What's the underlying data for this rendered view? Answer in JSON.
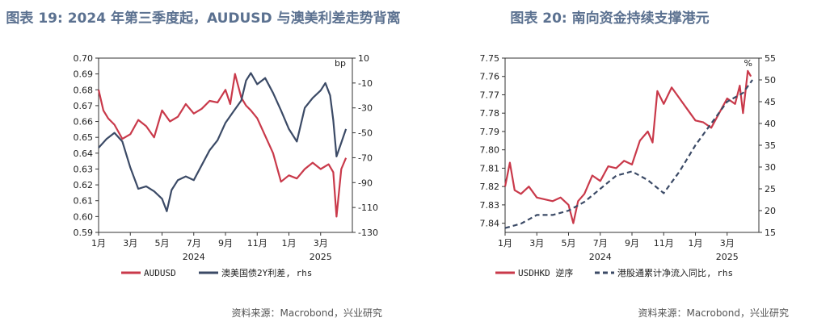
{
  "charts": [
    {
      "title": "图表 19: 2024 年第三季度起，AUDUSD 与澳美利差走势背离",
      "source": "资料来源：Macrobond，兴业研究"
    },
    {
      "title": "图表 20: 南向资金持续支撑港元",
      "source": "资料来源：Macrobond，兴业研究"
    }
  ],
  "colors": {
    "red": "#c9394a",
    "navy": "#3b4a66",
    "title": "#5b7190"
  },
  "chart_data": [
    {
      "type": "line",
      "title": "",
      "x_tick_labels": [
        "1月",
        "3月",
        "5月",
        "7月",
        "9月",
        "11月",
        "1月",
        "3月"
      ],
      "year_labels": [
        "2024",
        "2025"
      ],
      "left_axis": {
        "ylim": [
          0.59,
          0.7
        ],
        "ticks": [
          "0.59",
          "0.60",
          "0.61",
          "0.62",
          "0.63",
          "0.64",
          "0.65",
          "0.66",
          "0.67",
          "0.68",
          "0.69",
          "0.70"
        ]
      },
      "right_axis": {
        "unit": "bp",
        "ylim": [
          -130,
          10
        ],
        "ticks": [
          "10",
          "-10",
          "-30",
          "-50",
          "-70",
          "-90",
          "-110",
          "-130"
        ]
      },
      "x_range_months": [
        0,
        16
      ],
      "series": [
        {
          "name": "AUDUSD",
          "axis": "left",
          "color": "#c9394a",
          "x": [
            0,
            0.3,
            0.6,
            1,
            1.5,
            2,
            2.5,
            3,
            3.5,
            4,
            4.5,
            5,
            5.5,
            6,
            6.5,
            7,
            7.5,
            8,
            8.3,
            8.6,
            9,
            9.3,
            9.6,
            10,
            10.5,
            11,
            11.5,
            12,
            12.5,
            13,
            13.5,
            14,
            14.5,
            14.8,
            15,
            15.3,
            15.6
          ],
          "y": [
            0.68,
            0.667,
            0.662,
            0.658,
            0.649,
            0.652,
            0.661,
            0.657,
            0.65,
            0.667,
            0.66,
            0.663,
            0.671,
            0.665,
            0.668,
            0.673,
            0.672,
            0.68,
            0.671,
            0.69,
            0.675,
            0.67,
            0.667,
            0.662,
            0.651,
            0.64,
            0.622,
            0.626,
            0.624,
            0.63,
            0.634,
            0.63,
            0.633,
            0.628,
            0.6,
            0.63,
            0.637
          ]
        },
        {
          "name": "澳美国债2Y利差, rhs",
          "axis": "right",
          "color": "#3b4a66",
          "x": [
            0,
            0.5,
            1,
            1.5,
            2,
            2.5,
            3,
            3.5,
            4,
            4.3,
            4.6,
            5,
            5.5,
            6,
            6.5,
            7,
            7.5,
            8,
            8.5,
            9,
            9.3,
            9.6,
            10,
            10.5,
            11,
            11.5,
            12,
            12.5,
            13,
            13.5,
            14,
            14.3,
            14.6,
            14.8,
            15,
            15.3,
            15.6
          ],
          "y": [
            -62,
            -55,
            -50,
            -57,
            -78,
            -95,
            -93,
            -97,
            -103,
            -113,
            -96,
            -88,
            -85,
            -88,
            -76,
            -64,
            -56,
            -42,
            -33,
            -24,
            -8,
            -2,
            -11,
            -6,
            -18,
            -32,
            -47,
            -57,
            -30,
            -22,
            -16,
            -10,
            -20,
            -40,
            -69,
            -58,
            -47
          ]
        }
      ]
    },
    {
      "type": "line",
      "title": "",
      "x_tick_labels": [
        "1月",
        "3月",
        "5月",
        "7月",
        "9月",
        "11月",
        "1月",
        "3月"
      ],
      "year_labels": [
        "2024",
        "2025"
      ],
      "left_axis": {
        "inverted": true,
        "ylim": [
          7.75,
          7.845
        ],
        "ticks": [
          "7.75",
          "7.76",
          "7.77",
          "7.78",
          "7.79",
          "7.80",
          "7.81",
          "7.82",
          "7.83",
          "7.84"
        ]
      },
      "right_axis": {
        "unit": "%",
        "ylim": [
          15,
          55
        ],
        "ticks": [
          "55",
          "50",
          "45",
          "40",
          "35",
          "30",
          "25",
          "20",
          "15"
        ]
      },
      "x_range_months": [
        0,
        16
      ],
      "series": [
        {
          "name": "USDHKD 逆序",
          "axis": "left",
          "color": "#c9394a",
          "dash": false,
          "x": [
            0,
            0.3,
            0.6,
            1,
            1.5,
            2,
            2.5,
            3,
            3.5,
            4,
            4.3,
            4.6,
            5,
            5.5,
            6,
            6.5,
            7,
            7.5,
            8,
            8.5,
            9,
            9.3,
            9.6,
            10,
            10.5,
            11,
            11.5,
            12,
            12.5,
            13,
            13.5,
            14,
            14.5,
            14.8,
            15,
            15.3,
            15.5
          ],
          "y": [
            7.82,
            7.807,
            7.822,
            7.824,
            7.82,
            7.826,
            7.827,
            7.828,
            7.826,
            7.83,
            7.84,
            7.828,
            7.824,
            7.814,
            7.817,
            7.809,
            7.81,
            7.806,
            7.808,
            7.795,
            7.79,
            7.796,
            7.768,
            7.775,
            7.766,
            7.772,
            7.778,
            7.784,
            7.785,
            7.788,
            7.78,
            7.772,
            7.775,
            7.765,
            7.78,
            7.757,
            7.76
          ]
        },
        {
          "name": "港股通累计净流入同比, rhs",
          "axis": "right",
          "color": "#3b4a66",
          "dash": true,
          "x": [
            0,
            1,
            2,
            3,
            4,
            5,
            6,
            7,
            8,
            9,
            10,
            11,
            12,
            13,
            14,
            15,
            15.6
          ],
          "y": [
            16,
            17,
            19,
            19,
            20,
            22,
            25,
            28,
            29,
            27,
            24,
            29,
            35,
            40,
            45,
            47,
            50
          ]
        }
      ]
    }
  ]
}
